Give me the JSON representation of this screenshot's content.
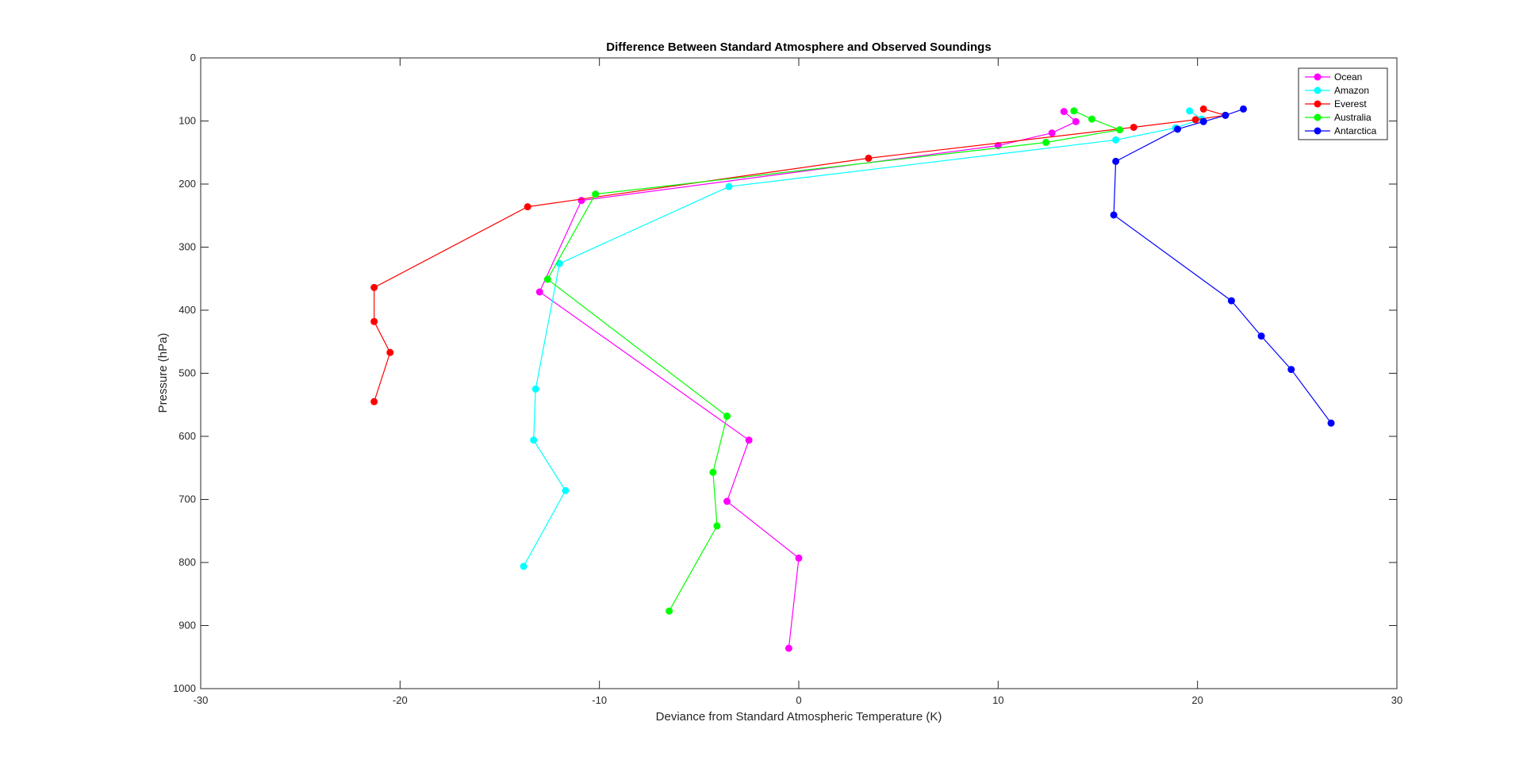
{
  "chart_data": {
    "type": "line",
    "title": "Difference Between Standard Atmosphere and Observed Soundings",
    "xlabel": "Deviance from Standard Atmospheric Temperature (K)",
    "ylabel": "Pressure (hPa)",
    "xlim": [
      -30,
      30
    ],
    "ylim": [
      0,
      1000
    ],
    "y_reversed": true,
    "grid": false,
    "legend_position": "top-right",
    "x_ticks": [
      -30,
      -20,
      -10,
      0,
      10,
      20,
      30
    ],
    "y_ticks": [
      0,
      100,
      200,
      300,
      400,
      500,
      600,
      700,
      800,
      900,
      1000
    ],
    "series": [
      {
        "name": "Ocean",
        "color": "#ff00ff",
        "points": [
          [
            -0.5,
            936
          ],
          [
            0.0,
            793
          ],
          [
            -3.6,
            703
          ],
          [
            -2.5,
            606
          ],
          [
            -13.0,
            371
          ],
          [
            -10.9,
            226
          ],
          [
            10.0,
            139
          ],
          [
            12.7,
            119
          ],
          [
            13.9,
            101
          ],
          [
            13.3,
            85
          ]
        ]
      },
      {
        "name": "Amazon",
        "color": "#00ffff",
        "points": [
          [
            -13.8,
            806
          ],
          [
            -11.7,
            686
          ],
          [
            -13.3,
            606
          ],
          [
            -13.2,
            525
          ],
          [
            -12.0,
            326
          ],
          [
            -3.5,
            204
          ],
          [
            15.9,
            130
          ],
          [
            18.9,
            111
          ],
          [
            20.2,
            97
          ],
          [
            19.6,
            84
          ]
        ]
      },
      {
        "name": "Everest",
        "color": "#ff0000",
        "points": [
          [
            -21.3,
            545
          ],
          [
            -20.5,
            467
          ],
          [
            -21.3,
            418
          ],
          [
            -21.3,
            364
          ],
          [
            -13.6,
            236
          ],
          [
            3.5,
            159
          ],
          [
            16.8,
            110
          ],
          [
            19.9,
            98
          ],
          [
            21.4,
            91
          ],
          [
            20.3,
            81
          ]
        ]
      },
      {
        "name": "Australia",
        "color": "#00ff00",
        "points": [
          [
            -6.5,
            877
          ],
          [
            -4.1,
            742
          ],
          [
            -4.3,
            657
          ],
          [
            -3.6,
            568
          ],
          [
            -12.6,
            351
          ],
          [
            -10.2,
            216
          ],
          [
            12.4,
            134
          ],
          [
            16.1,
            114
          ],
          [
            14.7,
            97
          ],
          [
            13.8,
            84
          ]
        ]
      },
      {
        "name": "Antarctica",
        "color": "#0000ff",
        "points": [
          [
            26.7,
            579
          ],
          [
            24.7,
            494
          ],
          [
            23.2,
            441
          ],
          [
            21.7,
            385
          ],
          [
            15.8,
            249
          ],
          [
            15.9,
            164
          ],
          [
            19.0,
            113
          ],
          [
            20.3,
            101
          ],
          [
            21.4,
            91
          ],
          [
            22.3,
            81
          ]
        ]
      }
    ]
  }
}
